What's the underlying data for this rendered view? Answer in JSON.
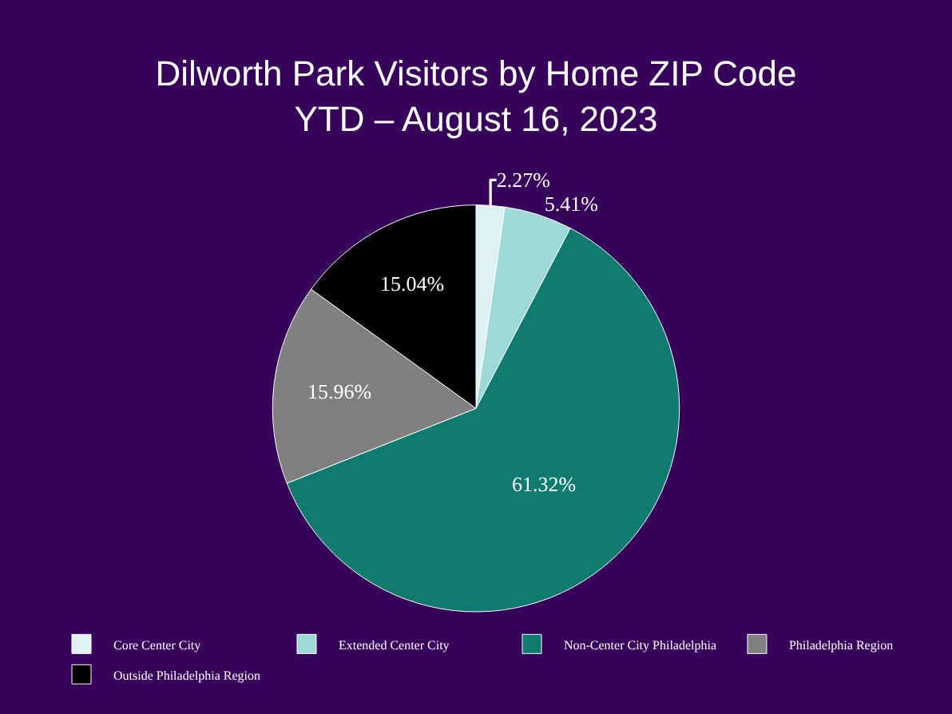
{
  "chart_data": {
    "type": "pie",
    "title": "Dilworth Park Visitors by Home ZIP Code\nYTD – August 16, 2023",
    "categories": [
      "Core Center City",
      "Extended Center City",
      "Non-Center City Philadelphia",
      "Philadelphia Region",
      "Outside Philadelphia Region"
    ],
    "values": [
      2.27,
      5.41,
      61.32,
      15.96,
      15.04
    ],
    "value_labels": [
      "2.27%",
      "5.41%",
      "61.32%",
      "15.96%",
      "15.04%"
    ],
    "colors": [
      "#dff1f1",
      "#9fd9d6",
      "#0f7a70",
      "#808080",
      "#000000"
    ],
    "legend": "bottom"
  }
}
